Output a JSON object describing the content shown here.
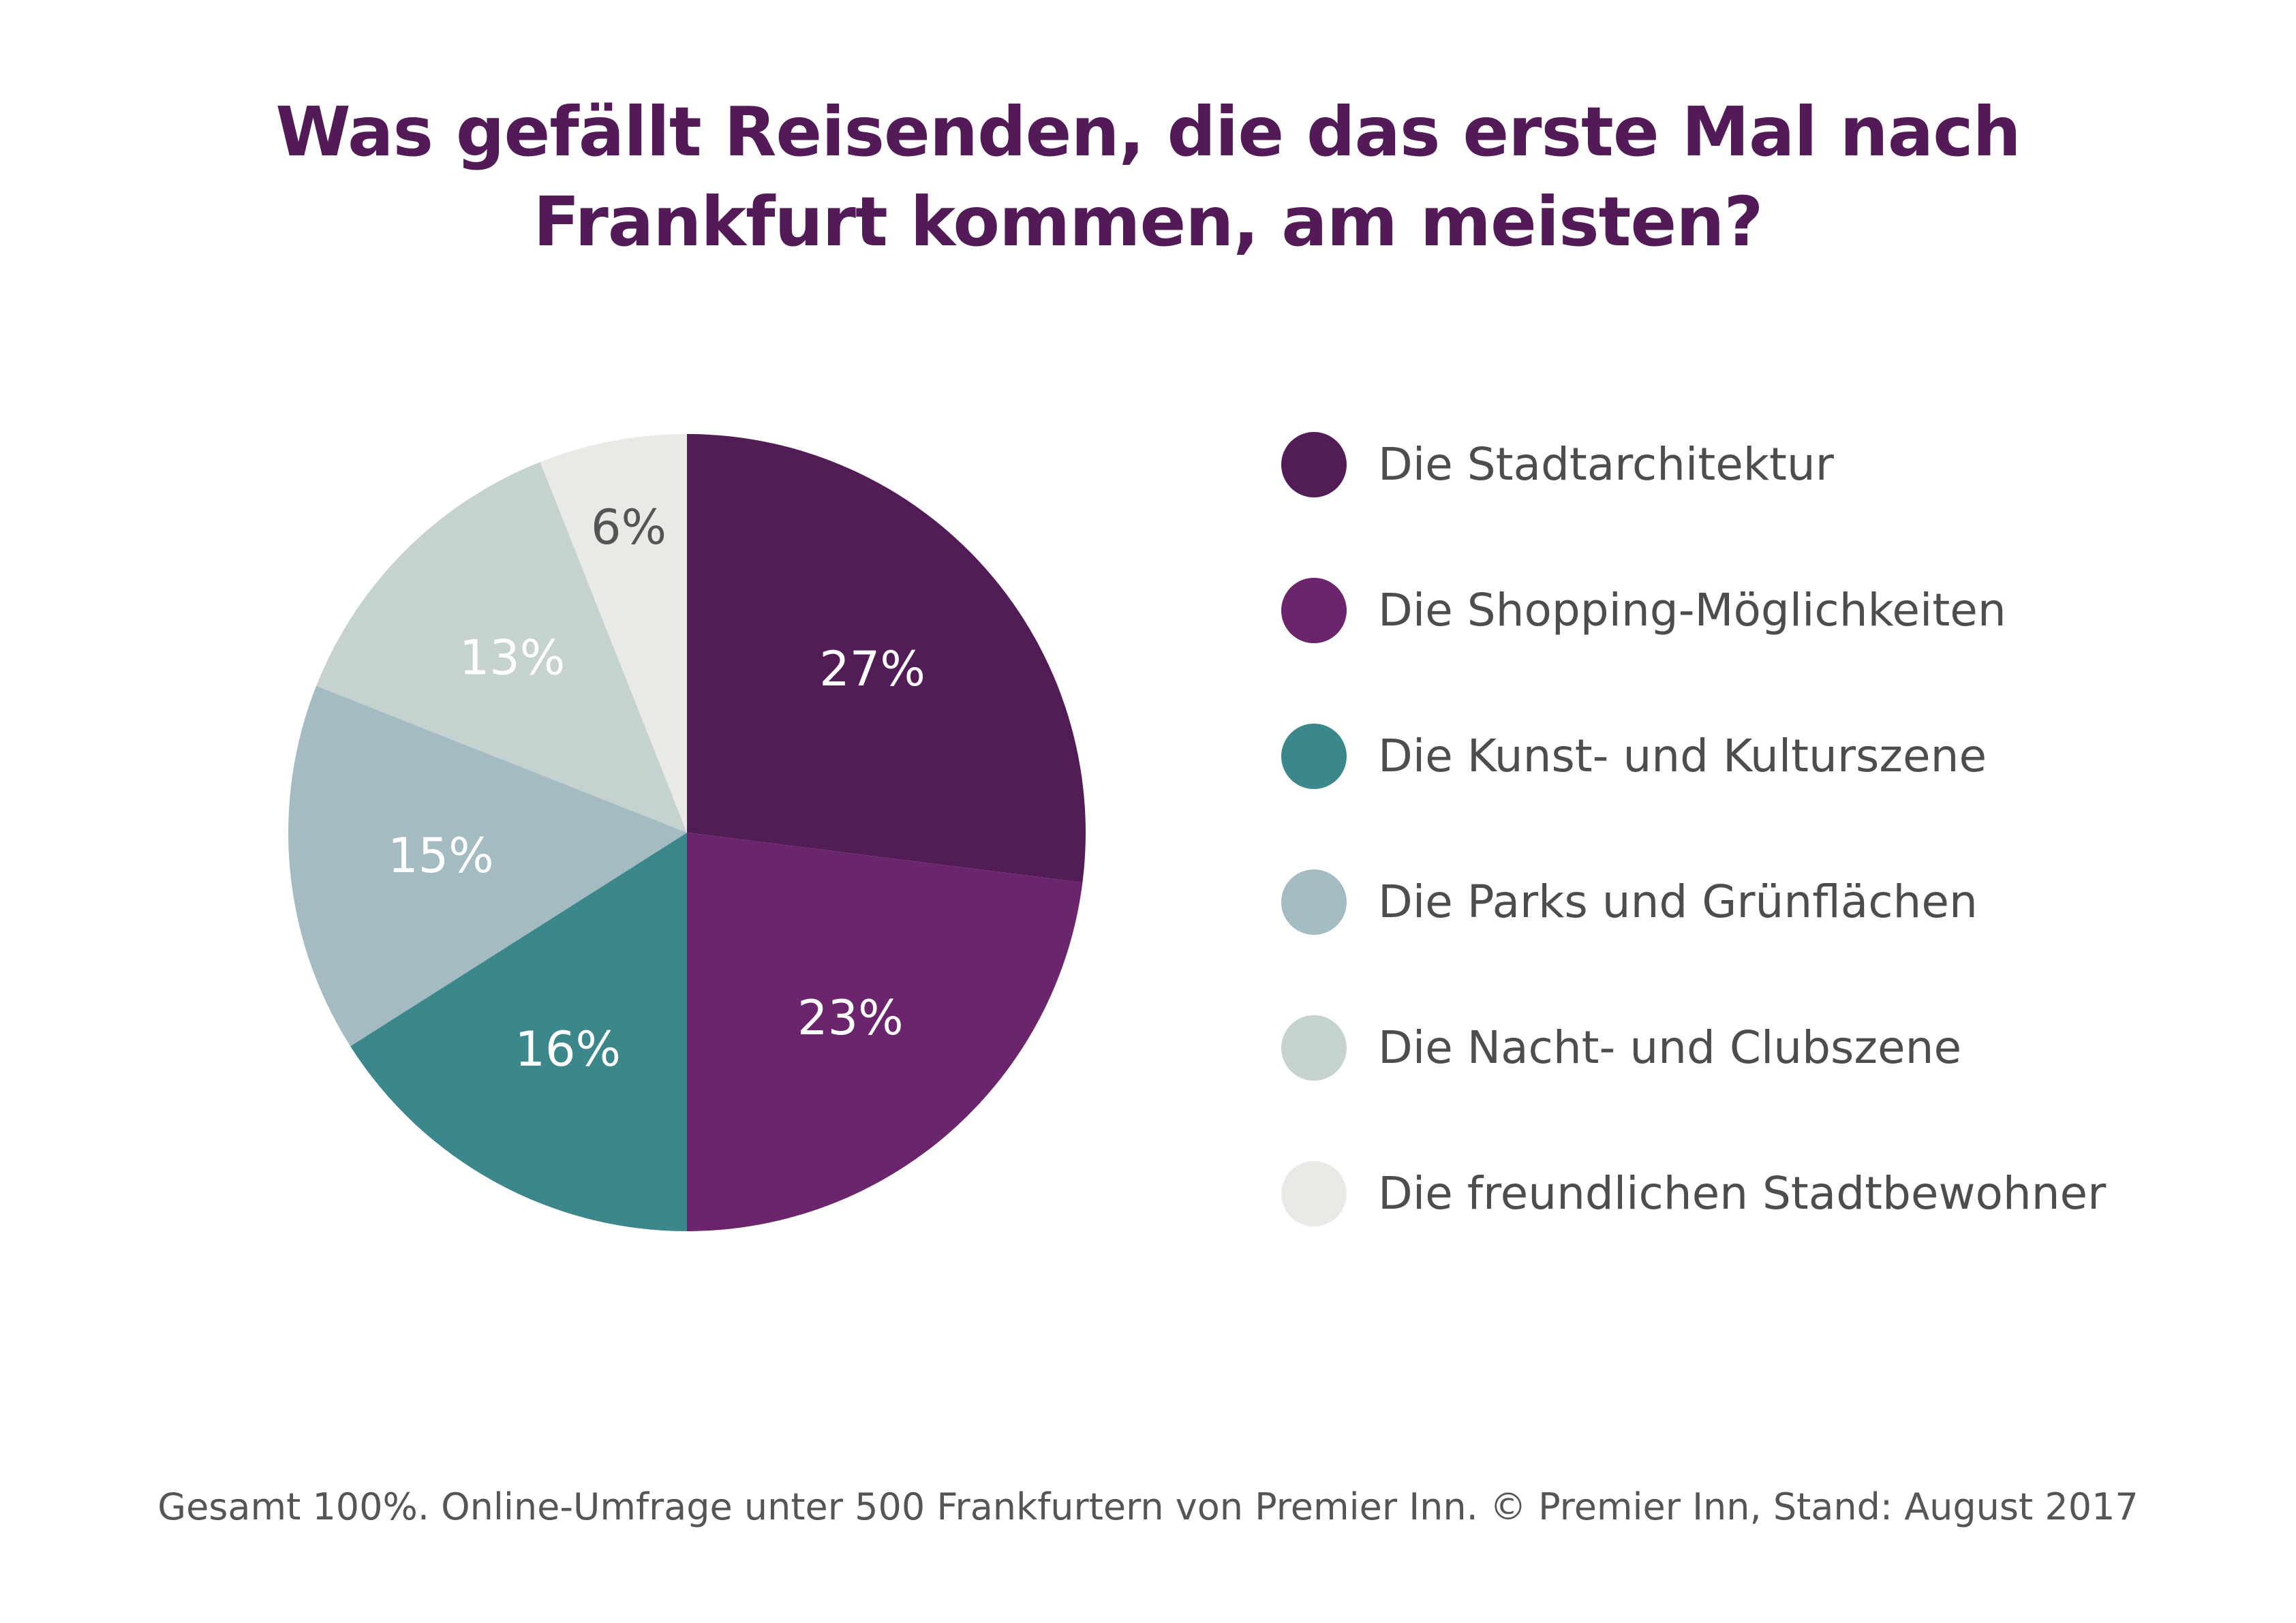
{
  "chart_data": {
    "type": "pie",
    "title": [
      "Was gefällt Reisenden, die das erste Mal nach",
      "Frankfurt kommen, am meisten?"
    ],
    "slices": [
      {
        "label": "Die Stadtarchitektur",
        "value": 27,
        "display": "27%",
        "color": "#521c57",
        "label_color": "#ffffff"
      },
      {
        "label": "Die Shopping-Möglichkeiten",
        "value": 23,
        "display": "23%",
        "color": "#6b256d",
        "label_color": "#ffffff"
      },
      {
        "label": "Die Kunst- und Kulturszene",
        "value": 16,
        "display": "16%",
        "color": "#3c878b",
        "label_color": "#ffffff"
      },
      {
        "label": "Die Parks und Grünflächen",
        "value": 15,
        "display": "15%",
        "color": "#a4bcc1",
        "label_color": "#ffffff"
      },
      {
        "label": "Die Nacht- und Clubszene",
        "value": 13,
        "display": "13%",
        "color": "#c5d2cf",
        "label_color": "#ffffff"
      },
      {
        "label": "Die freundlichen Stadtbewohner",
        "value": 6,
        "display": "6%",
        "color": "#e9e9e6",
        "label_color": "#555555"
      }
    ],
    "legend_position": "right"
  },
  "footer": "Gesamt 100%. Online-Umfrage unter 500 Frankfurtern von Premier Inn. © Premier Inn, Stand: August 2017"
}
